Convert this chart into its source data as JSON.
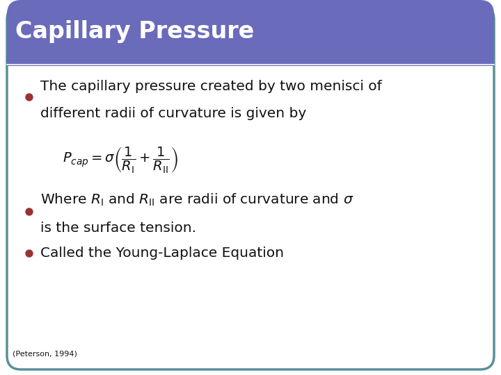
{
  "title": "Capillary Pressure",
  "title_bg_color": "#6B6BBB",
  "title_text_color": "#ffffff",
  "slide_bg_color": "#ffffff",
  "border_color": "#5B8F9A",
  "bullet_color": "#993333",
  "bullet1_line1": "The capillary pressure created by two menisci of",
  "bullet1_line2": "different radii of curvature is given by",
  "equation": "$P_{cap} = \\sigma\\left(\\dfrac{1}{R_{\\mathrm{I}}} + \\dfrac{1}{R_{\\mathrm{II}}}\\right)$",
  "bullet2_line1": "Where $R_{\\mathrm{I}}$ and $R_{\\mathrm{II}}$ are radii of curvature and $\\sigma$",
  "bullet2_line2": "is the surface tension.",
  "bullet3": "Called the Young-Laplace Equation",
  "footnote": "(Peterson, 1994)",
  "text_color": "#111111",
  "body_fontsize": 14.5,
  "title_fontsize": 24,
  "footnote_fontsize": 8,
  "eq_fontsize": 14
}
